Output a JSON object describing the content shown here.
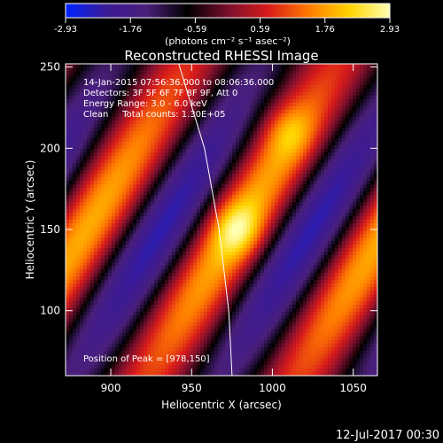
{
  "chart_data": {
    "type": "heatmap",
    "title": "Reconstructed RHESSI Image",
    "xlabel": "Heliocentric X (arcsec)",
    "ylabel": "Heliocentric Y (arcsec)",
    "xlim": [
      872,
      1065
    ],
    "ylim": [
      60,
      252
    ],
    "xticks": [
      900,
      950,
      1000,
      1050
    ],
    "yticks": [
      100,
      150,
      200,
      250
    ],
    "colorbar": {
      "min": -2.93,
      "max": 2.93,
      "ticks": [
        "-2.93",
        "-1.76",
        "-0.59",
        "0.59",
        "1.76",
        "2.93"
      ],
      "label": "(photons cm⁻² s⁻¹ asec⁻²)",
      "colors": [
        "#0022ff",
        "#3a1a96",
        "#4a1f7a",
        "#000000",
        "#7a0f2e",
        "#d81b1b",
        "#ff7a00",
        "#ffd400",
        "#ffffb0"
      ]
    },
    "annotations": [
      "14-Jan-2015 07:56:36.000 to 08:06:36.000",
      "Detectors: 3F 5F 6F 7F 8F 9F, Att 0",
      "Energy Range: 3.0 - 6.0 keV",
      "Clean     Total counts: 1.30E+05"
    ],
    "peak_label": "Position of Peak = [978,150]",
    "peak": {
      "x": 978,
      "y": 150,
      "value": 2.93
    },
    "secondary_maximum": {
      "x": 1010,
      "y": 210,
      "value": 2.6
    },
    "limb_line": [
      {
        "x": 942,
        "y": 252
      },
      {
        "x": 958,
        "y": 200
      },
      {
        "x": 967,
        "y": 150
      },
      {
        "x": 973,
        "y": 100
      },
      {
        "x": 975,
        "y": 60
      }
    ],
    "fringe_model": {
      "stripe_slope_x_per_y": 0.6,
      "stripe_period_x": 93,
      "ridge_reference": {
        "x": 978,
        "y": 150
      }
    },
    "footer_date": "12-Jul-2017 00:30"
  }
}
